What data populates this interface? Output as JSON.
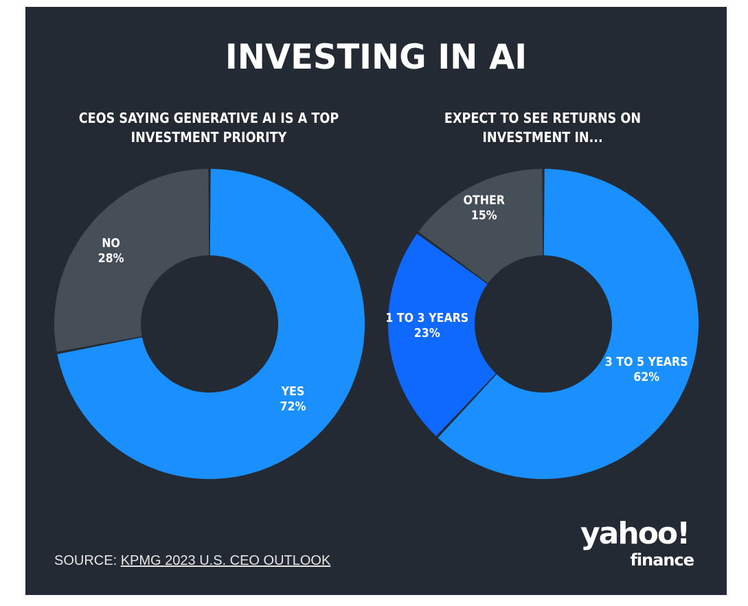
{
  "title": "INVESTING IN AI",
  "colors": {
    "background": "#242a33",
    "primary_blue": "#1a90ff",
    "secondary_blue": "#0f69ff",
    "gray": "#464e57",
    "text": "#ffffff"
  },
  "source": {
    "prefix": "SOURCE: ",
    "link_text": "KPMG 2023 U.S. CEO OUTLOOK"
  },
  "logo": {
    "line1": "yahoo!",
    "line2": "finance"
  },
  "chart_data": [
    {
      "type": "pie",
      "title": "CEOS SAYING GENERATIVE AI IS A TOP INVESTMENT PRIORITY",
      "slices": [
        {
          "label": "YES",
          "value": 72,
          "value_label": "72%",
          "color": "#1a90ff"
        },
        {
          "label": "NO",
          "value": 28,
          "value_label": "28%",
          "color": "#464e57"
        }
      ]
    },
    {
      "type": "pie",
      "title": "EXPECT TO SEE RETURNS ON INVESTMENT IN...",
      "slices": [
        {
          "label": "3 TO 5 YEARS",
          "value": 62,
          "value_label": "62%",
          "color": "#1a90ff"
        },
        {
          "label": "1 TO 3 YEARS",
          "value": 23,
          "value_label": "23%",
          "color": "#0f69ff"
        },
        {
          "label": "OTHER",
          "value": 15,
          "value_label": "15%",
          "color": "#464e57"
        }
      ]
    }
  ]
}
